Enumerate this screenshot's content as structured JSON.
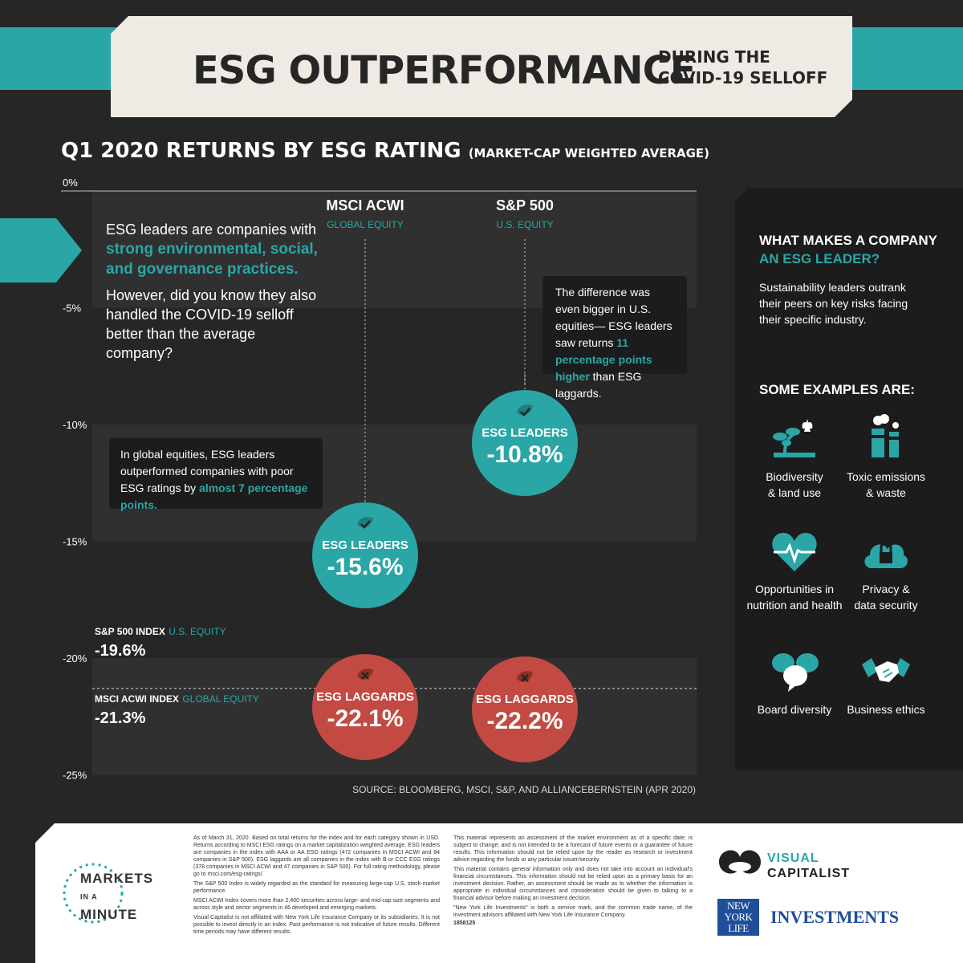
{
  "header": {
    "title": "ESG OUTPERFORMANCE",
    "subtitle_line1": "DURING THE",
    "subtitle_line2": "COVID-19 SELLOFF"
  },
  "chart_heading": {
    "title": "Q1 2020 RETURNS BY ESG RATING",
    "note": "(MARKET-CAP WEIGHTED AVERAGE)"
  },
  "intro": {
    "line1": "ESG leaders are companies with",
    "highlight": "strong environmental, social, and governance practices.",
    "para2": "However, did you know they also handled the COVID-19 selloff better than the average company?"
  },
  "callouts": {
    "global_text": "In global equities, ESG leaders outperformed companies with poor ESG ratings by",
    "global_highlight": "almost 7 percentage points.",
    "us_text": "The difference was even bigger in U.S. equities— ESG leaders saw returns",
    "us_highlight": "11 percentage points higher",
    "us_tail": "than ESG laggards."
  },
  "chart_data": {
    "type": "scatter",
    "y_ticks": [
      "0%",
      "-5%",
      "-10%",
      "-15%",
      "-20%",
      "-25%"
    ],
    "ylim": [
      -25,
      0
    ],
    "categories": [
      {
        "name": "MSCI ACWI",
        "sub": "GLOBAL EQUITY"
      },
      {
        "name": "S&P 500",
        "sub": "U.S. EQUITY"
      }
    ],
    "series": [
      {
        "name": "ESG LEADERS",
        "values": [
          -15.6,
          -10.8
        ],
        "labels": [
          "-15.6%",
          "-10.8%"
        ],
        "color": "#2ba6a6"
      },
      {
        "name": "ESG LAGGARDS",
        "values": [
          -22.1,
          -22.2
        ],
        "labels": [
          "-22.1%",
          "-22.2%"
        ],
        "color": "#c24a43"
      }
    ],
    "index_lines": [
      {
        "name": "S&P 500 INDEX",
        "sub": "U.S. EQUITY",
        "value": -19.6,
        "label": "-19.6%"
      },
      {
        "name": "MSCI ACWI INDEX",
        "sub": "GLOBAL EQUITY",
        "value": -21.3,
        "label": "-21.3%"
      }
    ],
    "source": "SOURCE: BLOOMBERG, MSCI, S&P, AND ALLIANCEBERNSTEIN (APR 2020)"
  },
  "sidebar": {
    "head1": "WHAT MAKES A COMPANY",
    "head2": "AN ESG LEADER?",
    "text": "Sustainability leaders outrank their peers on key risks facing their specific industry.",
    "examples_title": "SOME EXAMPLES ARE:",
    "examples": [
      {
        "line1": "Biodiversity",
        "line2": "& land use",
        "icon": "plant-icon"
      },
      {
        "line1": "Toxic emissions",
        "line2": "& waste",
        "icon": "factory-icon"
      },
      {
        "line1": "Opportunities in",
        "line2": "nutrition and health",
        "icon": "heart-icon"
      },
      {
        "line1": "Privacy &",
        "line2": "data security",
        "icon": "lock-cloud-icon"
      },
      {
        "line1": "Board diversity",
        "line2": "",
        "icon": "speech-bubbles-icon"
      },
      {
        "line1": "Business ethics",
        "line2": "",
        "icon": "handshake-icon"
      }
    ]
  },
  "footer": {
    "col1_p1": "As of March 31, 2020. Based on total returns for the index and for each category shown in USD. Returns according to MSCI ESG ratings on a market capitalization weighted average. ESG leaders are companies in the index with AAA or AA ESG ratings (472 companies in MSCI ACWI and 84 companies in S&P 500). ESG laggards are all companies in the index with B or CCC ESG ratings (378 companies in MSCI ACWI and 47 companies in S&P 500). For full rating methodology, please go to msci.com/esg-ratings/.",
    "col1_p2": "The S&P 500 Index is widely regarded as the standard for measuring large-cap U.S. stock-market performance.",
    "col1_p3": "MSCI ACWI Index covers more than 2,400 securities across large- and mid-cap size segments and across style and sector segments in 46 developed and emerging markets.",
    "col1_p4": "Visual Capitalist is not affiliated with New York Life Insurance Company or its subsidiaries. It is not possible to invest directly in an index. Past performance is not indicative of future results. Different time periods may have different results.",
    "col2_p1": "This material represents an assessment of the market environment as of a specific date; is subject to change; and is not intended to be a forecast of future events or a guarantee of future results. This information should not be relied upon by the reader as research or investment advice regarding the funds or any particular issuer/security.",
    "col2_p2": "This material contains general information only and does not take into account an individual's financial circumstances. This information should not be relied upon as a primary basis for an investment decision. Rather, an assessment should be made as to whether the information is appropriate in individual circumstances and consideration should be given to talking to a financial advisor before making an investment decision.",
    "col2_p3": "\"New York Life Investments\" is both a service mark, and the common trade name, of the investment advisors affiliated with New York Life Insurance Company.",
    "col2_code": "1858125",
    "mim_line1": "MARKETS",
    "mim_in": "IN A",
    "mim_line3": "MINUTE",
    "vc_line1": "VISUAL",
    "vc_line2": "CAPITALIST",
    "nyl_box": "NEW YORK LIFE",
    "nyl_text": "INVESTMENTS"
  }
}
